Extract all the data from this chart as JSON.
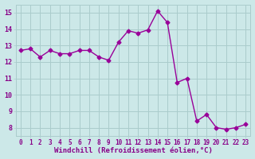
{
  "x": [
    0,
    1,
    2,
    3,
    4,
    5,
    6,
    7,
    8,
    9,
    10,
    11,
    12,
    13,
    14,
    15,
    16,
    17,
    18,
    19,
    20,
    21,
    22,
    23
  ],
  "y": [
    12.7,
    12.8,
    12.3,
    12.7,
    12.5,
    12.5,
    12.7,
    12.7,
    12.3,
    12.1,
    13.2,
    13.9,
    13.75,
    13.95,
    15.1,
    14.4,
    10.75,
    11.0,
    8.4,
    8.8,
    8.0,
    7.9,
    8.0,
    8.2
  ],
  "xlabel": "Windchill (Refroidissement éolien,°C)",
  "ylim": [
    7.5,
    15.5
  ],
  "xlim": [
    -0.5,
    23.5
  ],
  "yticks": [
    8,
    9,
    10,
    11,
    12,
    13,
    14,
    15
  ],
  "xticks": [
    0,
    1,
    2,
    3,
    4,
    5,
    6,
    7,
    8,
    9,
    10,
    11,
    12,
    13,
    14,
    15,
    16,
    17,
    18,
    19,
    20,
    21,
    22,
    23
  ],
  "xtick_labels": [
    "0",
    "1",
    "2",
    "3",
    "4",
    "5",
    "6",
    "7",
    "8",
    "9",
    "10",
    "11",
    "12",
    "13",
    "14",
    "15",
    "16",
    "17",
    "18",
    "19",
    "20",
    "21",
    "22",
    "23"
  ],
  "line_color": "#990099",
  "marker": "D",
  "marker_size": 2.5,
  "bg_color": "#cce8e8",
  "grid_color": "#aacccc",
  "line_width": 1.0,
  "tick_color": "#880088",
  "label_fontsize": 5.5,
  "xlabel_fontsize": 6.5
}
